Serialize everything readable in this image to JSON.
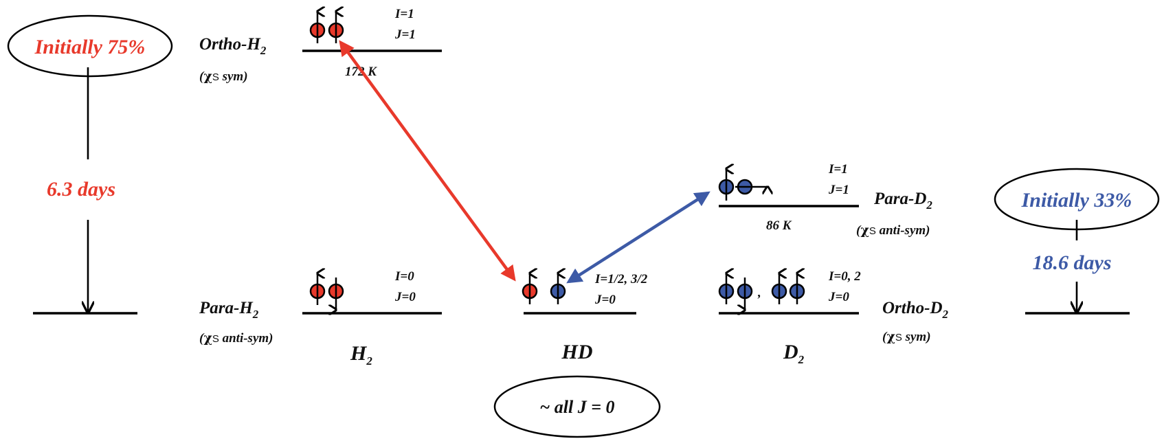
{
  "colors": {
    "red": "#e8392b",
    "blue": "#3d5aa6",
    "black": "#000000"
  },
  "left_panel": {
    "initial_label": "Initially 75%",
    "decay_time": "6.3 days"
  },
  "right_panel": {
    "initial_label": "Initially 33%",
    "decay_time": "18.6 days"
  },
  "h2": {
    "ortho": {
      "name": "Ortho-H",
      "name_sub": "2",
      "chi_sym": "sym",
      "I": "I=1",
      "J": "J=1",
      "energy": "172 K"
    },
    "para": {
      "name": "Para-H",
      "name_sub": "2",
      "chi_sym": "anti-sym",
      "I": "I=0",
      "J": "J=0"
    },
    "label": "H",
    "label_sub": "2"
  },
  "hd": {
    "I": "I=1/2, 3/2",
    "J": "J=0",
    "label": "HD",
    "ellipse_label": "~ all J = 0"
  },
  "d2": {
    "para": {
      "name": "Para-D",
      "name_sub": "2",
      "chi_sym": "anti-sym",
      "I": "I=1",
      "J": "J=1",
      "energy": "86 K"
    },
    "ortho": {
      "name": "Ortho-D",
      "name_sub": "2",
      "chi_sym": "sym",
      "I": "I=0, 2",
      "J": "J=0",
      "separator": ","
    },
    "label": "D",
    "label_sub": "2"
  },
  "chi": {
    "symbol": "χ",
    "subscript": "S"
  }
}
